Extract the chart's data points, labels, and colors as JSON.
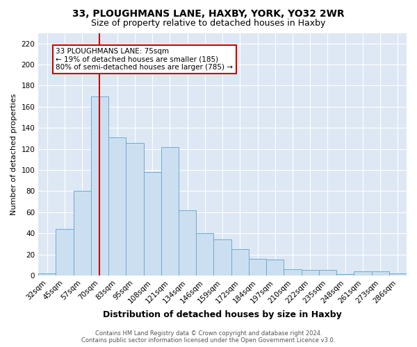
{
  "title": "33, PLOUGHMANS LANE, HAXBY, YORK, YO32 2WR",
  "subtitle": "Size of property relative to detached houses in Haxby",
  "xlabel": "Distribution of detached houses by size in Haxby",
  "ylabel": "Number of detached properties",
  "categories": [
    "32sqm",
    "45sqm",
    "57sqm",
    "70sqm",
    "83sqm",
    "95sqm",
    "108sqm",
    "121sqm",
    "134sqm",
    "146sqm",
    "159sqm",
    "172sqm",
    "184sqm",
    "197sqm",
    "210sqm",
    "222sqm",
    "235sqm",
    "248sqm",
    "261sqm",
    "273sqm",
    "286sqm"
  ],
  "values": [
    2,
    44,
    80,
    170,
    131,
    126,
    98,
    122,
    62,
    40,
    34,
    25,
    16,
    15,
    6,
    5,
    5,
    1,
    4,
    4,
    2
  ],
  "bar_color": "#ccdff0",
  "bar_edge_color": "#6aaad4",
  "vline_color": "#cc0000",
  "annotation_text": "33 PLOUGHMANS LANE: 75sqm\n← 19% of detached houses are smaller (185)\n80% of semi-detached houses are larger (785) →",
  "annotation_box_color": "#ffffff",
  "annotation_box_edge_color": "#cc0000",
  "ylim": [
    0,
    230
  ],
  "yticks": [
    0,
    20,
    40,
    60,
    80,
    100,
    120,
    140,
    160,
    180,
    200,
    220
  ],
  "background_color": "#dde8f4",
  "footer_line1": "Contains HM Land Registry data © Crown copyright and database right 2024.",
  "footer_line2": "Contains public sector information licensed under the Open Government Licence v3.0.",
  "title_fontsize": 10,
  "subtitle_fontsize": 9,
  "xlabel_fontsize": 9,
  "ylabel_fontsize": 8,
  "tick_fontsize": 7.5,
  "annotation_fontsize": 7.5,
  "footer_fontsize": 6
}
